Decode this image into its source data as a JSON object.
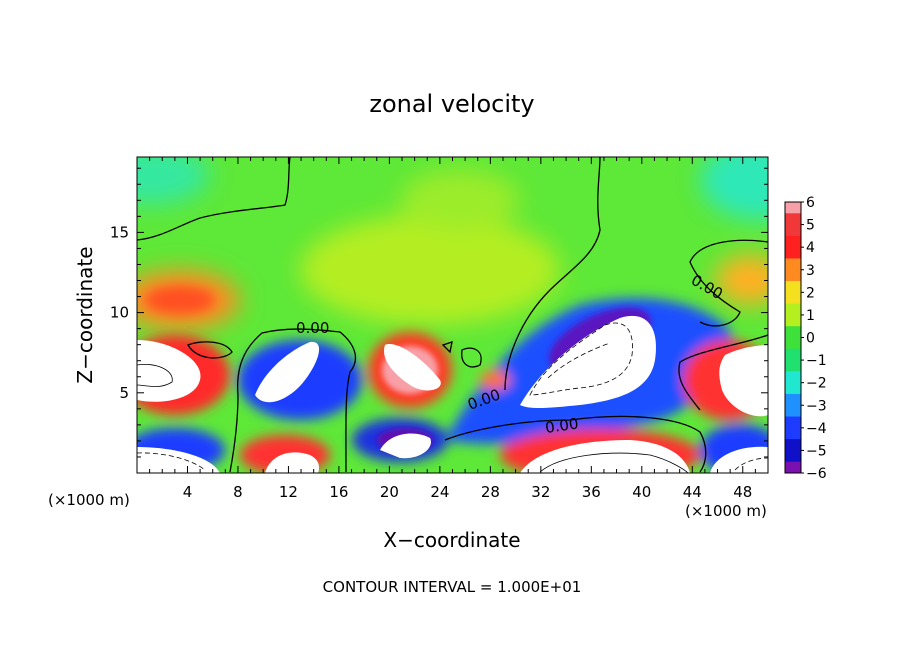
{
  "chart_data": {
    "type": "heatmap",
    "title": "zonal velocity",
    "xlabel": "X−coordinate",
    "ylabel": "Z−coordinate",
    "x_units_left": "(×1000 m)",
    "x_units_right": "(×1000 m)",
    "footer": "CONTOUR INTERVAL = 1.000E+01",
    "xlim": [
      0,
      50
    ],
    "ylim": [
      0,
      19.7
    ],
    "x_ticks": [
      4,
      8,
      12,
      16,
      20,
      24,
      28,
      32,
      36,
      40,
      44,
      48
    ],
    "y_ticks": [
      5,
      10,
      15
    ],
    "grid": false,
    "contour_labels": [
      "0.00",
      "0.00",
      "0.00",
      "0.00"
    ],
    "colorbar": {
      "labels": [
        "6",
        "5",
        "4",
        "3",
        "2",
        "1",
        "0",
        "−1",
        "−2",
        "−3",
        "−4",
        "−5",
        "−6"
      ],
      "colors": [
        "#f7a0a8",
        "#f03838",
        "#ff2020",
        "#ff8a20",
        "#f5e020",
        "#b4f020",
        "#3ee03a",
        "#20e070",
        "#20e8d0",
        "#1e90ff",
        "#1e3cff",
        "#1010c8",
        "#7a10b0"
      ]
    }
  }
}
